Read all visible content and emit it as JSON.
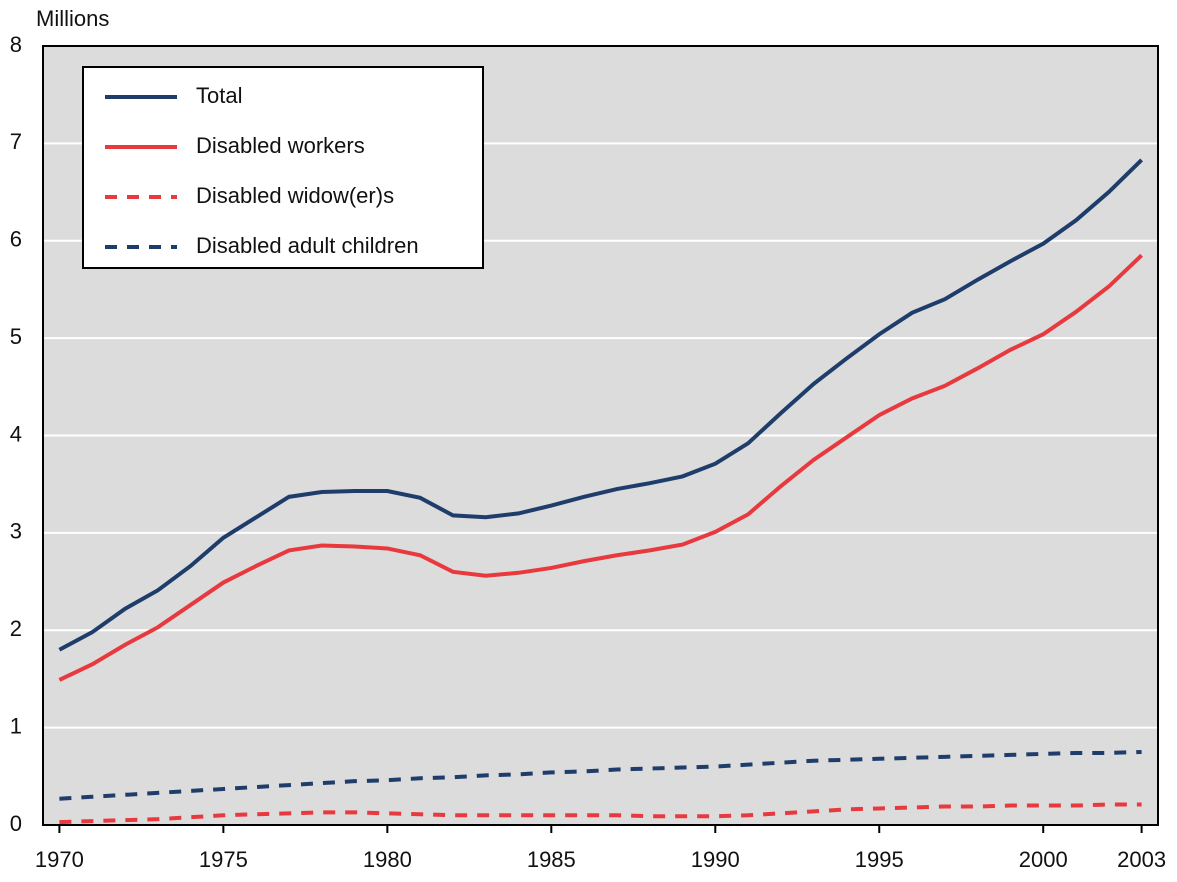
{
  "chart_data": {
    "type": "line",
    "y_label": "Millions",
    "x": [
      1970,
      1971,
      1972,
      1973,
      1974,
      1975,
      1976,
      1977,
      1978,
      1979,
      1980,
      1981,
      1982,
      1983,
      1984,
      1985,
      1986,
      1987,
      1988,
      1989,
      1990,
      1991,
      1992,
      1993,
      1994,
      1995,
      1996,
      1997,
      1998,
      1999,
      2000,
      2001,
      2002,
      2003
    ],
    "series": [
      {
        "name": "Total",
        "color": "#1f3d6b",
        "linestyle": "solid",
        "values": [
          1.8,
          1.98,
          2.22,
          2.41,
          2.66,
          2.95,
          3.16,
          3.37,
          3.42,
          3.43,
          3.43,
          3.36,
          3.18,
          3.16,
          3.2,
          3.28,
          3.37,
          3.45,
          3.51,
          3.58,
          3.71,
          3.92,
          4.23,
          4.53,
          4.79,
          5.04,
          5.26,
          5.4,
          5.6,
          5.79,
          5.97,
          6.21,
          6.5,
          6.83
        ]
      },
      {
        "name": "Disabled workers",
        "color": "#e8393e",
        "linestyle": "solid",
        "values": [
          1.49,
          1.65,
          1.85,
          2.03,
          2.26,
          2.49,
          2.66,
          2.82,
          2.87,
          2.86,
          2.84,
          2.77,
          2.6,
          2.56,
          2.59,
          2.64,
          2.71,
          2.77,
          2.82,
          2.88,
          3.01,
          3.19,
          3.48,
          3.75,
          3.98,
          4.21,
          4.38,
          4.51,
          4.69,
          4.88,
          5.04,
          5.27,
          5.53,
          5.85
        ]
      },
      {
        "name": "Disabled widow(er)s",
        "color": "#e8393e",
        "linestyle": "dashed",
        "values": [
          0.03,
          0.04,
          0.05,
          0.06,
          0.08,
          0.1,
          0.11,
          0.12,
          0.13,
          0.13,
          0.12,
          0.11,
          0.1,
          0.1,
          0.1,
          0.1,
          0.1,
          0.1,
          0.09,
          0.09,
          0.09,
          0.1,
          0.12,
          0.14,
          0.16,
          0.17,
          0.18,
          0.19,
          0.19,
          0.2,
          0.2,
          0.2,
          0.21,
          0.21
        ]
      },
      {
        "name": "Disabled adult children",
        "color": "#1f3d6b",
        "linestyle": "dashed",
        "values": [
          0.27,
          0.29,
          0.31,
          0.33,
          0.35,
          0.37,
          0.39,
          0.41,
          0.43,
          0.45,
          0.46,
          0.48,
          0.49,
          0.51,
          0.52,
          0.54,
          0.55,
          0.57,
          0.58,
          0.59,
          0.6,
          0.62,
          0.64,
          0.66,
          0.67,
          0.68,
          0.69,
          0.7,
          0.71,
          0.72,
          0.73,
          0.74,
          0.74,
          0.75
        ]
      }
    ],
    "xlim": [
      1969.5,
      2003.5
    ],
    "xticks": [
      1970,
      1975,
      1980,
      1985,
      1990,
      1995,
      2000,
      2003
    ],
    "ylim": [
      0,
      8
    ],
    "yticks": [
      0,
      1,
      2,
      3,
      4,
      5,
      6,
      7,
      8
    ],
    "grid": true,
    "legend": "upper left"
  }
}
